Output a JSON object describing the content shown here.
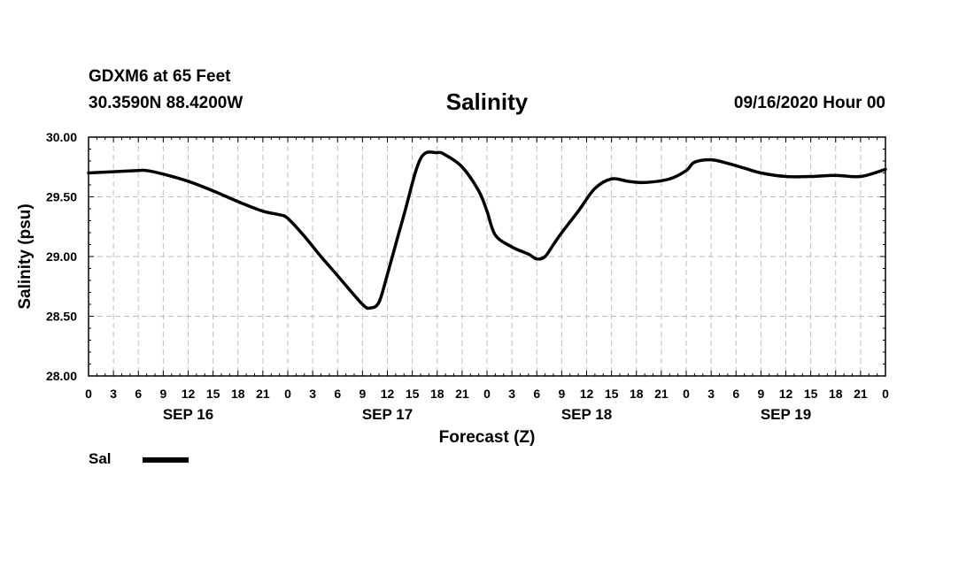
{
  "header": {
    "station": "GDXM6 at 65 Feet",
    "location": "30.3590N 88.4200W",
    "title": "Salinity",
    "issued": "09/16/2020 Hour 00"
  },
  "legend": {
    "label": "Sal",
    "color": "#000000"
  },
  "chart_data": {
    "type": "line",
    "title": "Salinity",
    "xlabel": "Forecast (Z)",
    "ylabel": "Salinity (psu)",
    "xlim": [
      0,
      96
    ],
    "ylim": [
      28.0,
      30.0
    ],
    "grid": true,
    "x_tick_step_hours": 3,
    "x_tick_labels": [
      "0",
      "3",
      "6",
      "9",
      "12",
      "15",
      "18",
      "21",
      "0",
      "3",
      "6",
      "9",
      "12",
      "15",
      "18",
      "21",
      "0",
      "3",
      "6",
      "9",
      "12",
      "15",
      "18",
      "21",
      "0",
      "3",
      "6",
      "9",
      "12",
      "15",
      "18",
      "21",
      "0"
    ],
    "y_ticks": [
      28.0,
      28.5,
      29.0,
      29.5,
      30.0
    ],
    "y_tick_labels": [
      "28.00",
      "28.50",
      "29.00",
      "29.50",
      "30.00"
    ],
    "day_labels": [
      {
        "label": "SEP 16",
        "hour": 12
      },
      {
        "label": "SEP 17",
        "hour": 36
      },
      {
        "label": "SEP 18",
        "hour": 60
      },
      {
        "label": "SEP 19",
        "hour": 84
      }
    ],
    "series": [
      {
        "name": "Sal",
        "x": [
          0,
          3,
          6,
          7,
          9,
          12,
          15,
          18,
          21,
          23,
          24,
          26,
          28,
          30,
          33,
          34,
          35,
          36,
          38,
          40,
          42,
          43,
          45,
          47,
          48,
          49,
          51,
          53,
          54,
          55,
          56,
          57,
          59,
          61,
          63,
          65,
          67,
          70,
          72,
          73,
          75,
          77,
          79,
          81,
          84,
          87,
          90,
          93,
          96
        ],
        "y": [
          29.7,
          29.71,
          29.72,
          29.72,
          29.69,
          29.63,
          29.55,
          29.46,
          29.38,
          29.35,
          29.32,
          29.17,
          29.0,
          28.84,
          28.6,
          28.57,
          28.62,
          28.85,
          29.35,
          29.82,
          29.87,
          29.85,
          29.75,
          29.55,
          29.38,
          29.18,
          29.08,
          29.02,
          28.98,
          29.0,
          29.1,
          29.2,
          29.38,
          29.57,
          29.65,
          29.63,
          29.62,
          29.65,
          29.72,
          29.79,
          29.81,
          29.78,
          29.74,
          29.7,
          29.67,
          29.67,
          29.68,
          29.67,
          29.73
        ]
      }
    ]
  }
}
